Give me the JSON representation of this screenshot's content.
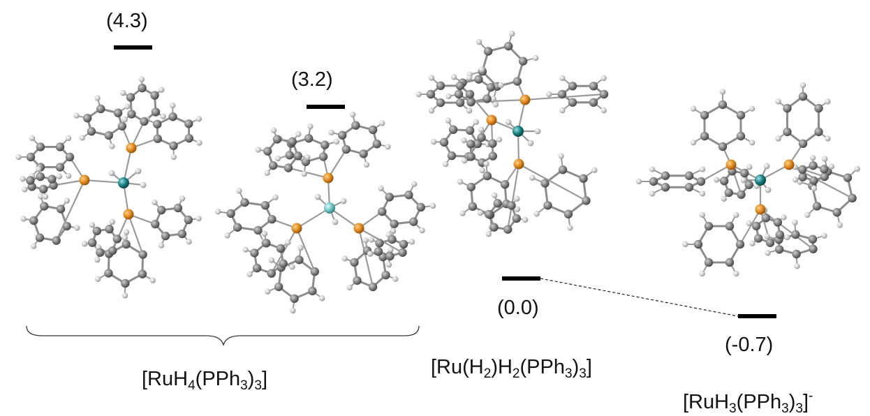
{
  "energy_levels": [
    {
      "id": "lvl-a",
      "value": "(4.3)"
    },
    {
      "id": "lvl-b",
      "value": "(3.2)"
    },
    {
      "id": "lvl-c",
      "value": "(0.0)"
    },
    {
      "id": "lvl-d",
      "value": "(-0.7)"
    }
  ],
  "labels": {
    "ruh4": {
      "pre": "[RuH",
      "s1": "4",
      "mid": "(PPh",
      "s2": "3",
      "post": ")",
      "s3": "3",
      "end": "]"
    },
    "ruh2": {
      "pre": "[Ru(H",
      "s1": "2",
      "mid": ")H",
      "s2": "2",
      "mid2": "(PPh",
      "s3": "3",
      "post": ")",
      "s4": "3",
      "end": "]"
    },
    "ruh3": {
      "pre": "[RuH",
      "s1": "3",
      "mid": "(PPh",
      "s2": "3",
      "post": ")",
      "s3": "3",
      "end": "]",
      "charge": "-"
    }
  },
  "colors": {
    "carbon": "#7a7a7a",
    "hydrogen": "#d8d8d8",
    "phosphorus": "#e08a1e",
    "ruthenium": "#177f80",
    "ruthenium_light": "#5fb5b5",
    "level_bar": "#000000"
  }
}
